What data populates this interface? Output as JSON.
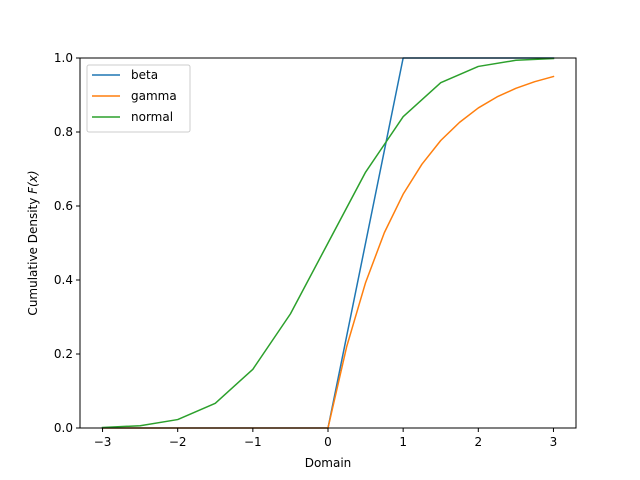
{
  "chart_data": {
    "type": "line",
    "xlabel": "Domain",
    "ylabel_prefix": "Cumulative Density ",
    "ylabel_math": "F(x)",
    "xlim": [
      -3.3,
      3.3
    ],
    "ylim": [
      0.0,
      1.0
    ],
    "xticks": [
      -3,
      -2,
      -1,
      0,
      1,
      2,
      3
    ],
    "xtick_labels": [
      "−3",
      "−2",
      "−1",
      "0",
      "1",
      "2",
      "3"
    ],
    "yticks": [
      0.0,
      0.2,
      0.4,
      0.6,
      0.8,
      1.0
    ],
    "ytick_labels": [
      "0.0",
      "0.2",
      "0.4",
      "0.6",
      "0.8",
      "1.0"
    ],
    "grid": false,
    "legend_position": "top-left",
    "series": [
      {
        "name": "beta",
        "color": "#1f77b4",
        "x": [
          -3.0,
          0.0,
          1.0,
          3.0
        ],
        "y": [
          0.0,
          0.0,
          1.0,
          1.0
        ]
      },
      {
        "name": "gamma",
        "color": "#ff7f0e",
        "x": [
          -3.0,
          0.0,
          0.25,
          0.5,
          0.75,
          1.0,
          1.25,
          1.5,
          1.75,
          2.0,
          2.25,
          2.5,
          2.75,
          3.0
        ],
        "y": [
          0.0,
          0.0,
          0.221,
          0.393,
          0.528,
          0.632,
          0.713,
          0.777,
          0.826,
          0.865,
          0.895,
          0.918,
          0.936,
          0.95
        ]
      },
      {
        "name": "normal",
        "color": "#2ca02c",
        "x": [
          -3.0,
          -2.5,
          -2.0,
          -1.5,
          -1.0,
          -0.5,
          0.0,
          0.5,
          1.0,
          1.5,
          2.0,
          2.5,
          3.0
        ],
        "y": [
          0.0013,
          0.0062,
          0.0228,
          0.0668,
          0.1587,
          0.3085,
          0.5,
          0.6915,
          0.8413,
          0.9332,
          0.9772,
          0.9938,
          0.9987
        ]
      }
    ]
  }
}
